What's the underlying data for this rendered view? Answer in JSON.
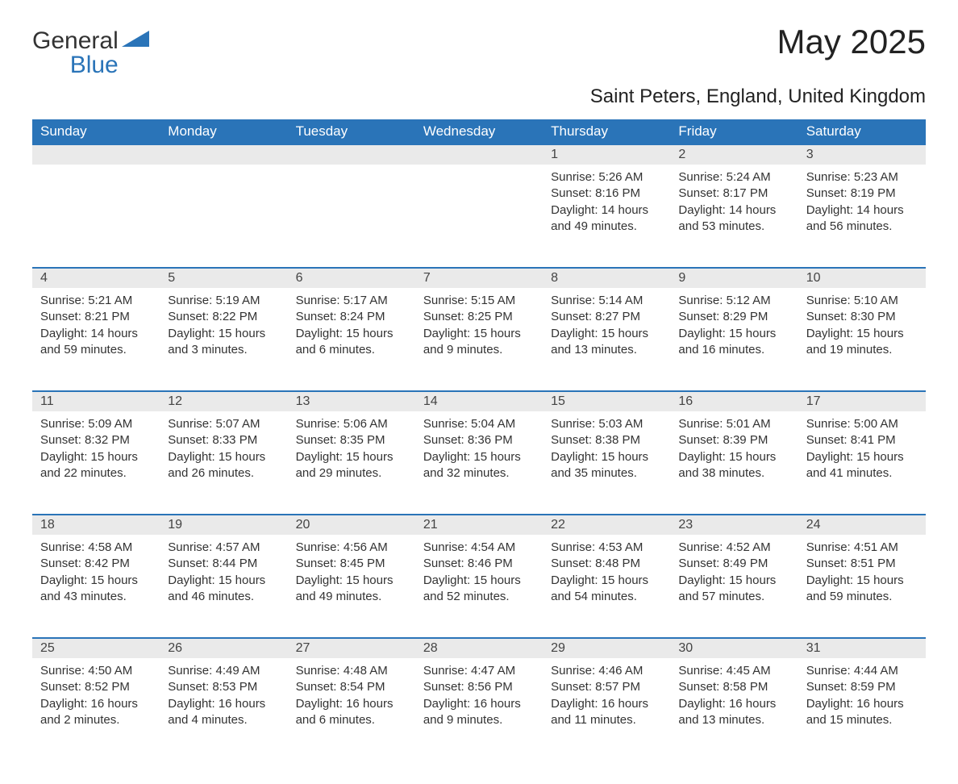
{
  "logo": {
    "line1": "General",
    "line2": "Blue"
  },
  "title": "May 2025",
  "location": "Saint Peters, England, United Kingdom",
  "colors": {
    "header_bg": "#2a74b8",
    "header_text": "#ffffff",
    "daynum_bg": "#eaeaea",
    "border_top": "#2a74b8",
    "body_text": "#333333",
    "background": "#ffffff"
  },
  "weekdays": [
    "Sunday",
    "Monday",
    "Tuesday",
    "Wednesday",
    "Thursday",
    "Friday",
    "Saturday"
  ],
  "weeks": [
    [
      null,
      null,
      null,
      null,
      {
        "d": "1",
        "sr": "5:26 AM",
        "ss": "8:16 PM",
        "dl": "14 hours and 49 minutes."
      },
      {
        "d": "2",
        "sr": "5:24 AM",
        "ss": "8:17 PM",
        "dl": "14 hours and 53 minutes."
      },
      {
        "d": "3",
        "sr": "5:23 AM",
        "ss": "8:19 PM",
        "dl": "14 hours and 56 minutes."
      }
    ],
    [
      {
        "d": "4",
        "sr": "5:21 AM",
        "ss": "8:21 PM",
        "dl": "14 hours and 59 minutes."
      },
      {
        "d": "5",
        "sr": "5:19 AM",
        "ss": "8:22 PM",
        "dl": "15 hours and 3 minutes."
      },
      {
        "d": "6",
        "sr": "5:17 AM",
        "ss": "8:24 PM",
        "dl": "15 hours and 6 minutes."
      },
      {
        "d": "7",
        "sr": "5:15 AM",
        "ss": "8:25 PM",
        "dl": "15 hours and 9 minutes."
      },
      {
        "d": "8",
        "sr": "5:14 AM",
        "ss": "8:27 PM",
        "dl": "15 hours and 13 minutes."
      },
      {
        "d": "9",
        "sr": "5:12 AM",
        "ss": "8:29 PM",
        "dl": "15 hours and 16 minutes."
      },
      {
        "d": "10",
        "sr": "5:10 AM",
        "ss": "8:30 PM",
        "dl": "15 hours and 19 minutes."
      }
    ],
    [
      {
        "d": "11",
        "sr": "5:09 AM",
        "ss": "8:32 PM",
        "dl": "15 hours and 22 minutes."
      },
      {
        "d": "12",
        "sr": "5:07 AM",
        "ss": "8:33 PM",
        "dl": "15 hours and 26 minutes."
      },
      {
        "d": "13",
        "sr": "5:06 AM",
        "ss": "8:35 PM",
        "dl": "15 hours and 29 minutes."
      },
      {
        "d": "14",
        "sr": "5:04 AM",
        "ss": "8:36 PM",
        "dl": "15 hours and 32 minutes."
      },
      {
        "d": "15",
        "sr": "5:03 AM",
        "ss": "8:38 PM",
        "dl": "15 hours and 35 minutes."
      },
      {
        "d": "16",
        "sr": "5:01 AM",
        "ss": "8:39 PM",
        "dl": "15 hours and 38 minutes."
      },
      {
        "d": "17",
        "sr": "5:00 AM",
        "ss": "8:41 PM",
        "dl": "15 hours and 41 minutes."
      }
    ],
    [
      {
        "d": "18",
        "sr": "4:58 AM",
        "ss": "8:42 PM",
        "dl": "15 hours and 43 minutes."
      },
      {
        "d": "19",
        "sr": "4:57 AM",
        "ss": "8:44 PM",
        "dl": "15 hours and 46 minutes."
      },
      {
        "d": "20",
        "sr": "4:56 AM",
        "ss": "8:45 PM",
        "dl": "15 hours and 49 minutes."
      },
      {
        "d": "21",
        "sr": "4:54 AM",
        "ss": "8:46 PM",
        "dl": "15 hours and 52 minutes."
      },
      {
        "d": "22",
        "sr": "4:53 AM",
        "ss": "8:48 PM",
        "dl": "15 hours and 54 minutes."
      },
      {
        "d": "23",
        "sr": "4:52 AM",
        "ss": "8:49 PM",
        "dl": "15 hours and 57 minutes."
      },
      {
        "d": "24",
        "sr": "4:51 AM",
        "ss": "8:51 PM",
        "dl": "15 hours and 59 minutes."
      }
    ],
    [
      {
        "d": "25",
        "sr": "4:50 AM",
        "ss": "8:52 PM",
        "dl": "16 hours and 2 minutes."
      },
      {
        "d": "26",
        "sr": "4:49 AM",
        "ss": "8:53 PM",
        "dl": "16 hours and 4 minutes."
      },
      {
        "d": "27",
        "sr": "4:48 AM",
        "ss": "8:54 PM",
        "dl": "16 hours and 6 minutes."
      },
      {
        "d": "28",
        "sr": "4:47 AM",
        "ss": "8:56 PM",
        "dl": "16 hours and 9 minutes."
      },
      {
        "d": "29",
        "sr": "4:46 AM",
        "ss": "8:57 PM",
        "dl": "16 hours and 11 minutes."
      },
      {
        "d": "30",
        "sr": "4:45 AM",
        "ss": "8:58 PM",
        "dl": "16 hours and 13 minutes."
      },
      {
        "d": "31",
        "sr": "4:44 AM",
        "ss": "8:59 PM",
        "dl": "16 hours and 15 minutes."
      }
    ]
  ],
  "labels": {
    "sunrise": "Sunrise:",
    "sunset": "Sunset:",
    "daylight": "Daylight:"
  }
}
